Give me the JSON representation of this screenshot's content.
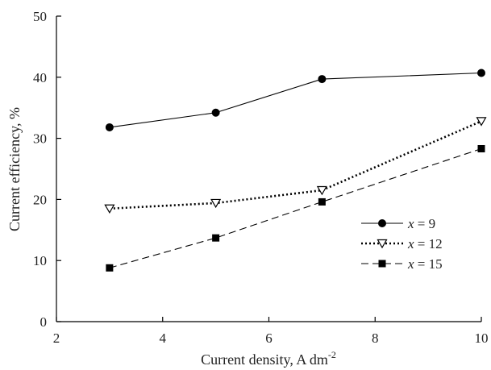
{
  "chart_data": {
    "type": "line",
    "title": "",
    "xlabel": "Current density, A dm",
    "xlabel_superscript": "-2",
    "ylabel": "Current efficiency, %",
    "xlim": [
      2,
      10
    ],
    "ylim": [
      0,
      50
    ],
    "xticks": [
      2,
      4,
      6,
      8,
      10
    ],
    "yticks": [
      0,
      10,
      20,
      30,
      40,
      50
    ],
    "grid": false,
    "legend_position": "right",
    "x": [
      3,
      5,
      7,
      10
    ],
    "series": [
      {
        "name": "x = 9",
        "name_var": "x",
        "name_value": " = 9",
        "values": [
          31.8,
          34.2,
          39.7,
          40.7
        ],
        "marker": "circle-filled",
        "line_style": "solid",
        "color": "#000000"
      },
      {
        "name": "x = 12",
        "name_var": "x",
        "name_value": " = 12",
        "values": [
          18.5,
          19.4,
          21.5,
          32.8
        ],
        "marker": "triangle-down-open",
        "line_style": "dotted",
        "color": "#000000"
      },
      {
        "name": "x = 15",
        "name_var": "x",
        "name_value": " = 15",
        "values": [
          8.8,
          13.7,
          19.6,
          28.3
        ],
        "marker": "square-filled",
        "line_style": "dashed",
        "color": "#000000"
      }
    ]
  }
}
